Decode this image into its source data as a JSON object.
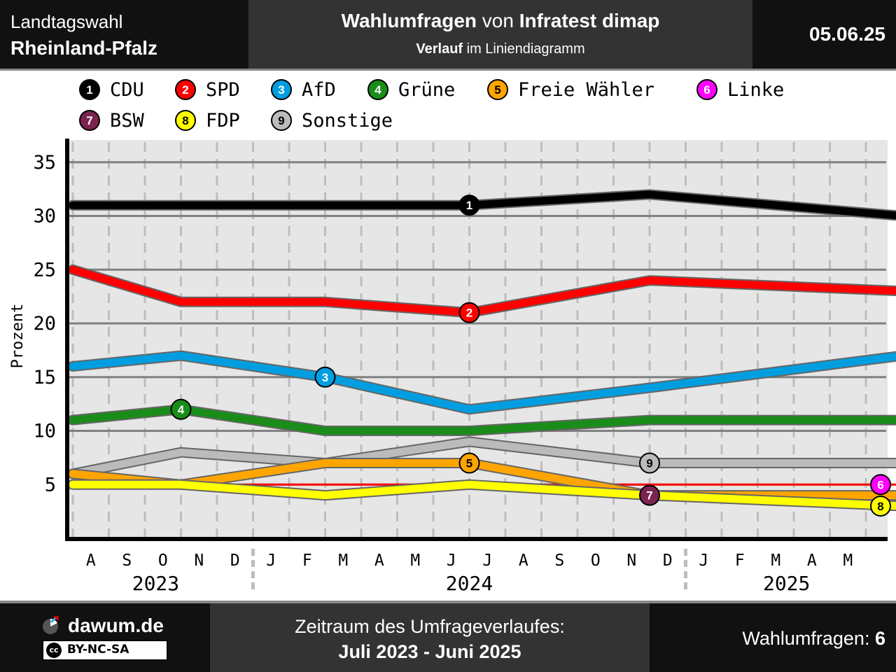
{
  "header": {
    "election_line1": "Landtagswahl",
    "election_line2": "Rheinland-Pfalz",
    "title_part1": "Wahlumfragen",
    "title_part2": " von ",
    "title_part3": "Infratest dimap",
    "subtitle_part1": "Verlauf",
    "subtitle_part2": " im Liniendiagramm",
    "date": "05.06.25"
  },
  "footer": {
    "site": "dawum.de",
    "license": "BY-NC-SA",
    "license_icon": "cc",
    "period_label": "Zeitraum des Umfrageverlaufes:",
    "period_value": "Juli 2023 - Juni 2025",
    "count_label": "Wahlumfragen: ",
    "count_value": "6"
  },
  "chart_data": {
    "type": "line",
    "ylabel": "Prozent",
    "ylim": [
      0,
      37
    ],
    "yticks": [
      5,
      10,
      15,
      20,
      25,
      30,
      35
    ],
    "grid": true,
    "legend_position": "top",
    "month_labels": [
      "A",
      "S",
      "O",
      "N",
      "D",
      "J",
      "F",
      "M",
      "A",
      "M",
      "J",
      "J",
      "A",
      "S",
      "O",
      "N",
      "D",
      "J",
      "F",
      "M",
      "A",
      "M"
    ],
    "years": [
      {
        "label": "2023",
        "center_month": 2.3
      },
      {
        "label": "2024",
        "center_month": 11
      },
      {
        "label": "2025",
        "center_month": 19.8
      }
    ],
    "year_dividers": [
      5,
      17
    ],
    "x": [
      "2023-07",
      "2023-10",
      "2024-02",
      "2024-06",
      "2024-11",
      "2025-06"
    ],
    "series": [
      {
        "name": "CDU",
        "num": "1",
        "color": "#000000",
        "text": "#ffffff",
        "values": [
          31,
          31,
          31,
          31,
          32,
          30
        ],
        "marker_month": 11
      },
      {
        "name": "SPD",
        "num": "2",
        "color": "#ff0000",
        "text": "#ffffff",
        "values": [
          25,
          22,
          22,
          21,
          24,
          23
        ],
        "marker_month": 11
      },
      {
        "name": "AfD",
        "num": "3",
        "color": "#009ee0",
        "text": "#ffffff",
        "values": [
          16,
          17,
          15,
          12,
          14,
          17
        ],
        "marker_month": 7
      },
      {
        "name": "Grüne",
        "num": "4",
        "color": "#1a8c1a",
        "text": "#ffffff",
        "values": [
          11,
          12,
          10,
          10,
          11,
          11
        ],
        "marker_month": 3
      },
      {
        "name": "Freie Wähler",
        "num": "5",
        "color": "#ffa500",
        "text": "#000000",
        "values": [
          6,
          5,
          7,
          7,
          4,
          4
        ],
        "marker_month": 11
      },
      {
        "name": "Linke",
        "num": "6",
        "color": "#ff00ff",
        "text": "#ffffff",
        "values": [
          5,
          5,
          5,
          5,
          5,
          5
        ],
        "thin": true,
        "thin_color": "#ff0000",
        "marker_month": 23
      },
      {
        "name": "BSW",
        "num": "7",
        "color": "#7b2450",
        "text": "#ffffff",
        "values": [
          null,
          null,
          null,
          null,
          4,
          null
        ],
        "marker_month": 16
      },
      {
        "name": "FDP",
        "num": "8",
        "color": "#ffff00",
        "text": "#000000",
        "values": [
          5,
          5,
          4,
          5,
          4,
          3
        ],
        "marker_month": 23
      },
      {
        "name": "Sonstige",
        "num": "9",
        "color": "#bbbbbb",
        "text": "#000000",
        "values": [
          6,
          8,
          7,
          9,
          7,
          7
        ],
        "marker_month": 16
      }
    ]
  }
}
